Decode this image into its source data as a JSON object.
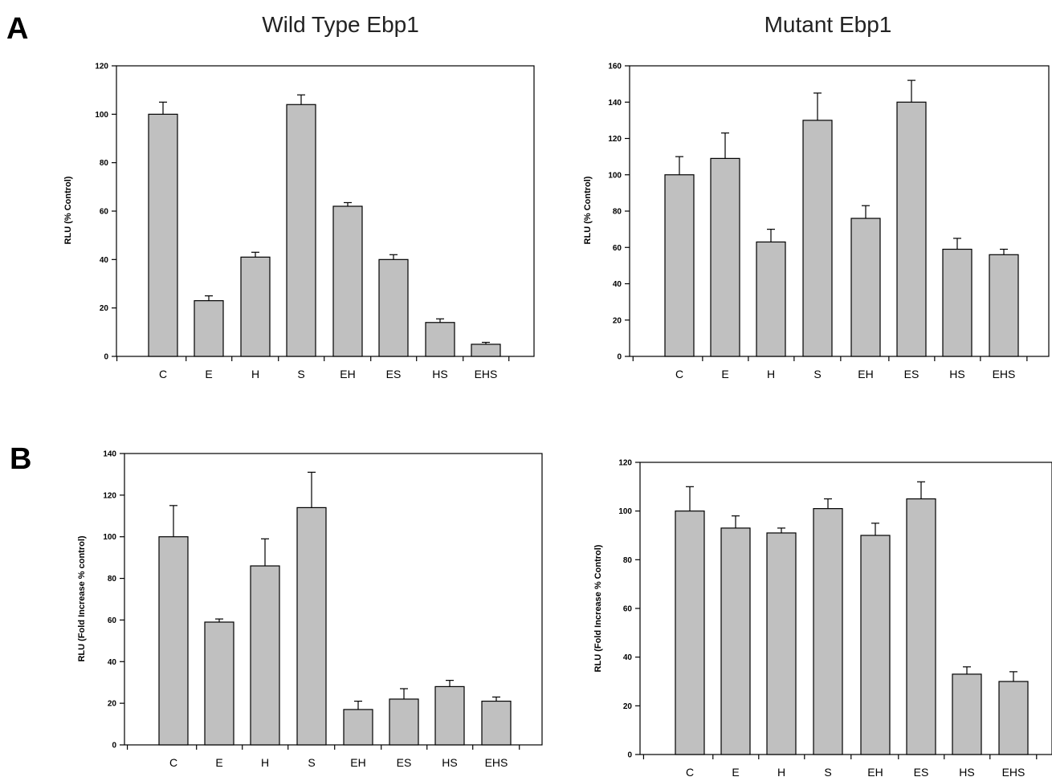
{
  "figure": {
    "panel_a_letter": "A",
    "panel_b_letter": "B",
    "col_left_title": "Wild Type Ebp1",
    "col_right_title": "Mutant Ebp1"
  },
  "chart_data": [
    {
      "id": "a-left",
      "type": "bar",
      "panel": "A",
      "column_title": "Wild Type Ebp1",
      "categories": [
        "C",
        "E",
        "H",
        "S",
        "EH",
        "ES",
        "HS",
        "EHS"
      ],
      "values": [
        100,
        23,
        41,
        104,
        62,
        40,
        14,
        5
      ],
      "errors": [
        5,
        2,
        2,
        4,
        1.5,
        2,
        1.5,
        0.8
      ],
      "ylabel": "RLU (% Control)",
      "ylim": [
        0,
        120
      ],
      "yticks": [
        0,
        20,
        40,
        60,
        80,
        100,
        120
      ],
      "bar_color": "#c0c0c0"
    },
    {
      "id": "a-right",
      "type": "bar",
      "panel": "A",
      "column_title": "Mutant Ebp1",
      "categories": [
        "C",
        "E",
        "H",
        "S",
        "EH",
        "ES",
        "HS",
        "EHS"
      ],
      "values": [
        100,
        109,
        63,
        130,
        76,
        140,
        59,
        56
      ],
      "errors": [
        10,
        14,
        7,
        15,
        7,
        12,
        6,
        3
      ],
      "ylabel": "RLU (% Control)",
      "ylim": [
        0,
        160
      ],
      "yticks": [
        0,
        20,
        40,
        60,
        80,
        100,
        120,
        140,
        160
      ],
      "bar_color": "#c0c0c0"
    },
    {
      "id": "b-left",
      "type": "bar",
      "panel": "B",
      "categories": [
        "C",
        "E",
        "H",
        "S",
        "EH",
        "ES",
        "HS",
        "EHS"
      ],
      "values": [
        100,
        59,
        86,
        114,
        17,
        22,
        28,
        21
      ],
      "errors": [
        15,
        1.5,
        13,
        17,
        4,
        5,
        3,
        2
      ],
      "ylabel": "RLU (Fold Increase % control)",
      "ylim": [
        0,
        140
      ],
      "yticks": [
        0,
        20,
        40,
        60,
        80,
        100,
        120,
        140
      ],
      "bar_color": "#c0c0c0"
    },
    {
      "id": "b-right",
      "type": "bar",
      "panel": "B",
      "categories": [
        "C",
        "E",
        "H",
        "S",
        "EH",
        "ES",
        "HS",
        "EHS"
      ],
      "values": [
        100,
        93,
        91,
        101,
        90,
        105,
        33,
        30
      ],
      "errors": [
        10,
        5,
        2,
        4,
        5,
        7,
        3,
        4
      ],
      "ylabel": "RLU (Fold Increase % Control)",
      "ylim": [
        0,
        120
      ],
      "yticks": [
        0,
        20,
        40,
        60,
        80,
        100,
        120
      ],
      "bar_color": "#c0c0c0"
    }
  ]
}
